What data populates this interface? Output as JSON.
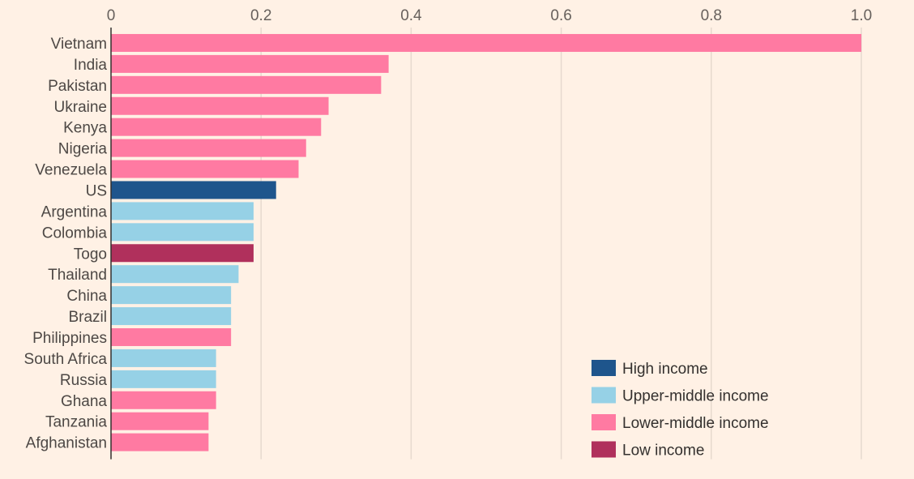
{
  "chart_data": {
    "type": "bar",
    "orientation": "horizontal",
    "xlim": [
      0,
      1.0
    ],
    "ticks": [
      {
        "value": 0,
        "label": "0"
      },
      {
        "value": 0.2,
        "label": "0.2"
      },
      {
        "value": 0.4,
        "label": "0.4"
      },
      {
        "value": 0.6,
        "label": "0.6"
      },
      {
        "value": 0.8,
        "label": "0.8"
      },
      {
        "value": 1.0,
        "label": "1.0"
      }
    ],
    "categories": [
      "Vietnam",
      "India",
      "Pakistan",
      "Ukraine",
      "Kenya",
      "Nigeria",
      "Venezuela",
      "US",
      "Argentina",
      "Colombia",
      "Togo",
      "Thailand",
      "China",
      "Brazil",
      "Philippines",
      "South Africa",
      "Russia",
      "Ghana",
      "Tanzania",
      "Afghanistan"
    ],
    "values": [
      1.0,
      0.37,
      0.36,
      0.29,
      0.28,
      0.26,
      0.25,
      0.22,
      0.19,
      0.19,
      0.19,
      0.17,
      0.16,
      0.16,
      0.16,
      0.14,
      0.14,
      0.14,
      0.13,
      0.13
    ],
    "groups": [
      "lower-middle",
      "lower-middle",
      "lower-middle",
      "lower-middle",
      "lower-middle",
      "lower-middle",
      "lower-middle",
      "high",
      "upper-middle",
      "upper-middle",
      "low",
      "upper-middle",
      "upper-middle",
      "upper-middle",
      "lower-middle",
      "upper-middle",
      "upper-middle",
      "lower-middle",
      "lower-middle",
      "lower-middle"
    ],
    "legend": [
      {
        "key": "high",
        "label": "High income",
        "color": "#1e558c"
      },
      {
        "key": "upper-middle",
        "label": "Upper-middle income",
        "color": "#96d1e6"
      },
      {
        "key": "lower-middle",
        "label": "Lower-middle income",
        "color": "#ff7aa2"
      },
      {
        "key": "low",
        "label": "Low income",
        "color": "#b0305c"
      }
    ],
    "legend_position": "bottom-right",
    "grid": true
  },
  "colors": {
    "background": "#fff1e5",
    "gridline": "#e6d9ce",
    "axis": "#33302e"
  }
}
